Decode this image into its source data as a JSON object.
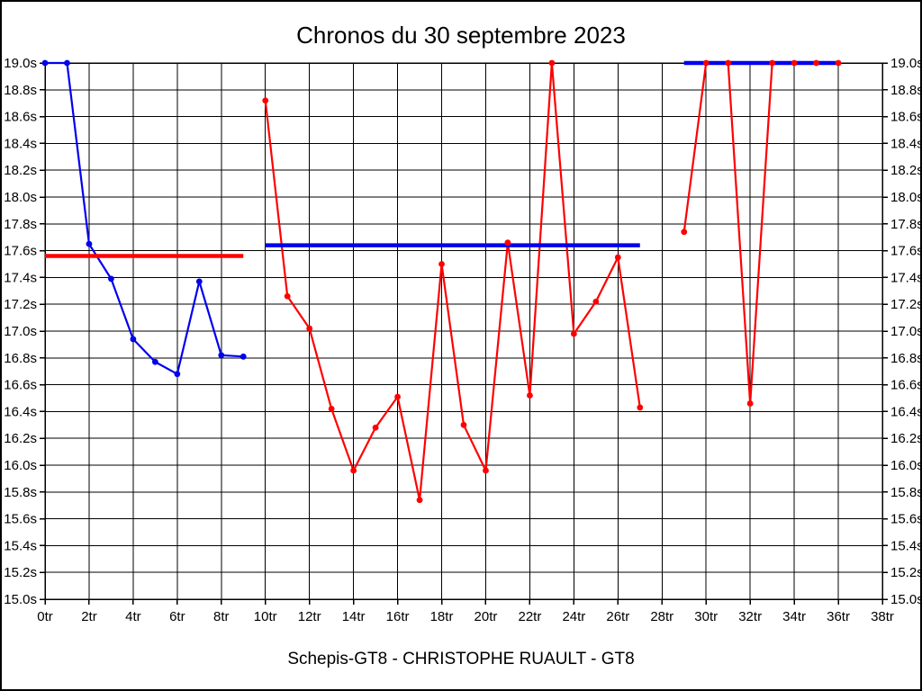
{
  "window": {
    "title": "Chronos du 30 septembre 2023",
    "footer": "Schepis-GT8 - CHRISTOPHE RUAULT - GT8"
  },
  "colors": {
    "background": "#ffffff",
    "frame_border": "#000000",
    "grid": "#000000",
    "text": "#000000",
    "blue_series": "#0000ee",
    "red_series": "#ff0000"
  },
  "chart_data": {
    "type": "line",
    "title": "Chronos du 30 septembre 2023",
    "footer": "Schepis-GT8 - CHRISTOPHE RUAULT - GT8",
    "grid": true,
    "legend": "none",
    "x_axis": {
      "min": 0,
      "max": 38,
      "tick_step": 2,
      "suffix": "tr"
    },
    "y_axis": {
      "min": 15.0,
      "max": 19.0,
      "tick_step": 0.2,
      "suffix": "s",
      "decimals": 1,
      "labels_both_sides": true
    },
    "series": [
      {
        "name": "run-1-lap-times",
        "kind": "line",
        "color": "#0000ee",
        "x": [
          0,
          1,
          2,
          3,
          4,
          5,
          6,
          7,
          8,
          9
        ],
        "y": [
          19.0,
          19.0,
          17.65,
          17.39,
          16.94,
          16.77,
          16.68,
          17.37,
          16.82,
          16.81
        ]
      },
      {
        "name": "run-2-lap-times",
        "kind": "line",
        "color": "#ff0000",
        "x": [
          10,
          11,
          12,
          13,
          14,
          15,
          16,
          17,
          18,
          19,
          20,
          21,
          22,
          23,
          24,
          25,
          26,
          27
        ],
        "y": [
          18.72,
          17.26,
          17.02,
          16.42,
          15.96,
          16.28,
          16.51,
          15.74,
          17.5,
          16.3,
          15.96,
          17.66,
          16.52,
          19.0,
          16.98,
          17.22,
          17.55,
          16.43
        ]
      },
      {
        "name": "run-3-lap-times",
        "kind": "line",
        "color": "#ff0000",
        "x": [
          29,
          30,
          31,
          32,
          33,
          34,
          35,
          36
        ],
        "y": [
          17.74,
          19.0,
          19.0,
          16.46,
          19.0,
          19.0,
          19.0,
          19.0
        ]
      },
      {
        "name": "run-1-average-line",
        "kind": "hline",
        "color": "#ff0000",
        "x_start": 0,
        "x_end": 9,
        "y": 17.56
      },
      {
        "name": "run-2-average-line",
        "kind": "hline",
        "color": "#0000ee",
        "x_start": 10,
        "x_end": 27,
        "y": 17.64
      },
      {
        "name": "run-3-average-line",
        "kind": "hline",
        "color": "#0000ee",
        "x_start": 29,
        "x_end": 36,
        "y": 19.0
      }
    ]
  }
}
